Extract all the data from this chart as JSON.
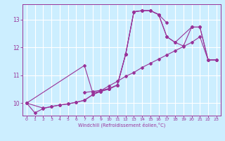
{
  "xlabel": "Windchill (Refroidissement éolien,°C)",
  "bg_color": "#cceeff",
  "grid_color": "#ffffff",
  "line_color": "#993399",
  "xlim": [
    -0.5,
    23.5
  ],
  "ylim": [
    9.55,
    13.55
  ],
  "xticks": [
    0,
    1,
    2,
    3,
    4,
    5,
    6,
    7,
    8,
    9,
    10,
    11,
    12,
    13,
    14,
    15,
    16,
    17,
    18,
    19,
    20,
    21,
    22,
    23
  ],
  "yticks": [
    10,
    11,
    12,
    13
  ],
  "series1_x": [
    0,
    1,
    2,
    3,
    4,
    5,
    6,
    7,
    8,
    9,
    10,
    11,
    12,
    13,
    14,
    15,
    16,
    17,
    18,
    19,
    20,
    21,
    22,
    23
  ],
  "series1_y": [
    10.0,
    9.65,
    9.8,
    9.88,
    9.93,
    9.97,
    10.03,
    10.1,
    10.3,
    10.45,
    10.62,
    10.78,
    10.96,
    11.1,
    11.28,
    11.43,
    11.58,
    11.73,
    11.88,
    12.03,
    12.18,
    12.38,
    11.55,
    11.55
  ],
  "series2_x": [
    0,
    7,
    8,
    9,
    10,
    11,
    12,
    13,
    14,
    15,
    16,
    17
  ],
  "series2_y": [
    10.0,
    11.35,
    10.38,
    10.42,
    10.5,
    10.65,
    11.75,
    13.28,
    13.32,
    13.32,
    13.18,
    12.88
  ],
  "series3_x": [
    7,
    8,
    9,
    10,
    11,
    12,
    13,
    14,
    15,
    16,
    17,
    18,
    20,
    21,
    22,
    23
  ],
  "series3_y": [
    10.38,
    10.42,
    10.46,
    10.52,
    10.65,
    11.75,
    13.28,
    13.32,
    13.32,
    13.18,
    12.38,
    12.18,
    12.73,
    12.73,
    11.55,
    11.55
  ],
  "series4_x": [
    0,
    2,
    3,
    4,
    5,
    6,
    7,
    8,
    9,
    10,
    11,
    12,
    13,
    14,
    15,
    16,
    17,
    18,
    19,
    20,
    21,
    22,
    23
  ],
  "series4_y": [
    10.0,
    9.82,
    9.87,
    9.93,
    9.97,
    10.03,
    10.1,
    10.3,
    10.42,
    10.52,
    10.65,
    11.75,
    13.28,
    13.32,
    13.32,
    13.18,
    12.38,
    12.18,
    12.05,
    12.73,
    12.73,
    11.55,
    11.55
  ]
}
